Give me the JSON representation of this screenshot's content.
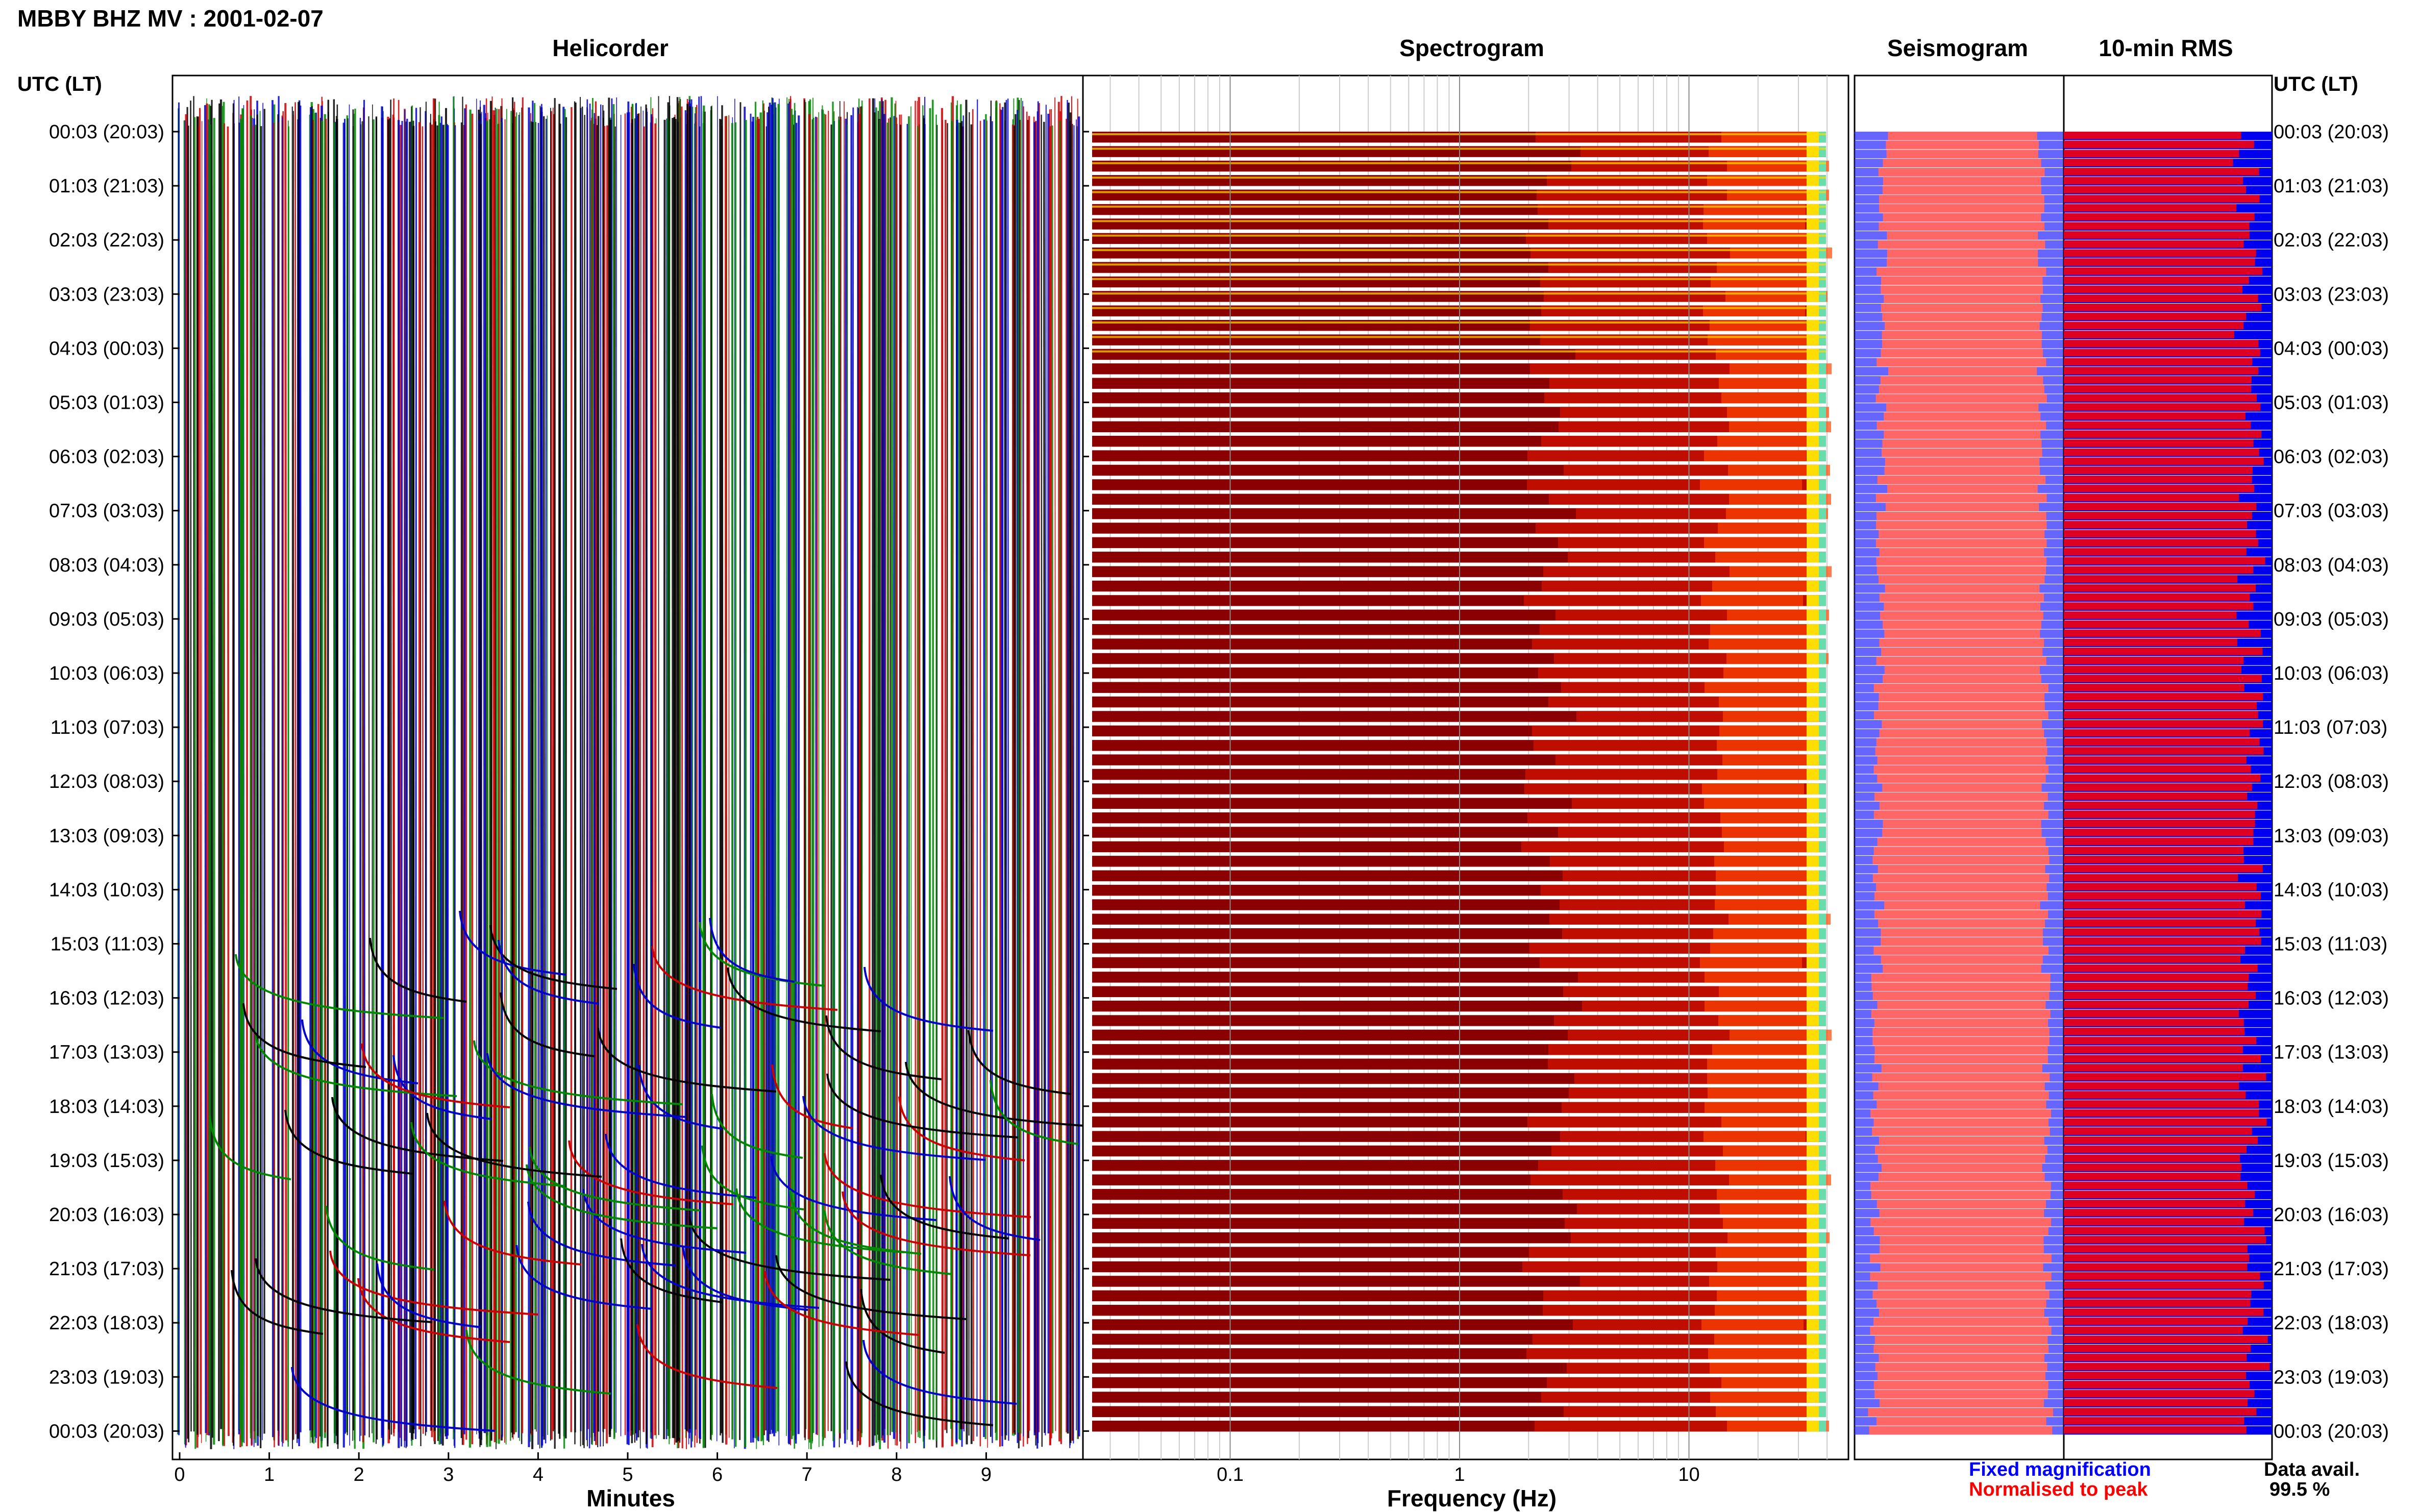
{
  "page_title": "MBBY BHZ MV : 2001-02-07",
  "time_axis": {
    "left_header": "UTC (LT)",
    "right_header": "UTC (LT)",
    "rows": [
      "00:03 (20:03)",
      "01:03 (21:03)",
      "02:03 (22:03)",
      "03:03 (23:03)",
      "04:03 (00:03)",
      "05:03 (01:03)",
      "06:03 (02:03)",
      "07:03 (03:03)",
      "08:03 (04:03)",
      "09:03 (05:03)",
      "10:03 (06:03)",
      "11:03 (07:03)",
      "12:03 (08:03)",
      "13:03 (09:03)",
      "14:03 (10:03)",
      "15:03 (11:03)",
      "16:03 (12:03)",
      "17:03 (13:03)",
      "18:03 (14:03)",
      "19:03 (15:03)",
      "20:03 (16:03)",
      "21:03 (17:03)",
      "22:03 (18:03)",
      "23:03 (19:03)",
      "00:03 (20:03)"
    ]
  },
  "panels": {
    "helicorder": {
      "title": "Helicorder",
      "xlabel": "Minutes",
      "ticks": [
        "0",
        "1",
        "2",
        "3",
        "4",
        "5",
        "6",
        "7",
        "8",
        "9"
      ],
      "trace_colors": [
        "#000000",
        "#cc0000",
        "#0000cc",
        "#008800"
      ]
    },
    "spectrogram": {
      "title": "Spectrogram",
      "xlabel": "Frequency (Hz)",
      "ticks": [
        "0.1",
        "1",
        "10"
      ],
      "scale": "log",
      "colors": [
        "#8b0000",
        "#cc1100",
        "#ff4400",
        "#ffdd00",
        "#66ddaa"
      ]
    },
    "seismogram": {
      "title": "Seismogram",
      "colors": {
        "fixed": "#3333ff",
        "normalised": "#ff6666"
      }
    },
    "rms": {
      "title": "10-min RMS",
      "colors": {
        "fixed": "#0000ee",
        "normalised": "#dd0022"
      }
    }
  },
  "legend": {
    "fixed_label": "Fixed magnification",
    "fixed_color": "#0000ff",
    "normalised_label": "Normalised to peak",
    "normalised_color": "#ff0000"
  },
  "data_availability": {
    "label": "Data avail.",
    "value": "99.5 %"
  },
  "chart_data": [
    {
      "type": "line",
      "title": "Helicorder",
      "xlabel": "Minutes",
      "xlim": [
        0,
        10
      ],
      "x_ticks": [
        0,
        1,
        2,
        3,
        4,
        5,
        6,
        7,
        8,
        9
      ],
      "rows": 144,
      "row_minutes": 10,
      "notes": "dense multi-colour traces, saturated"
    },
    {
      "type": "heatmap",
      "title": "Spectrogram",
      "xlabel": "Frequency (Hz)",
      "x_scale": "log",
      "x_ticks": [
        0.1,
        1,
        10
      ],
      "xlim": [
        0.02,
        50
      ]
    },
    {
      "type": "bar",
      "title": "Seismogram"
    },
    {
      "type": "bar",
      "title": "10-min RMS"
    }
  ]
}
